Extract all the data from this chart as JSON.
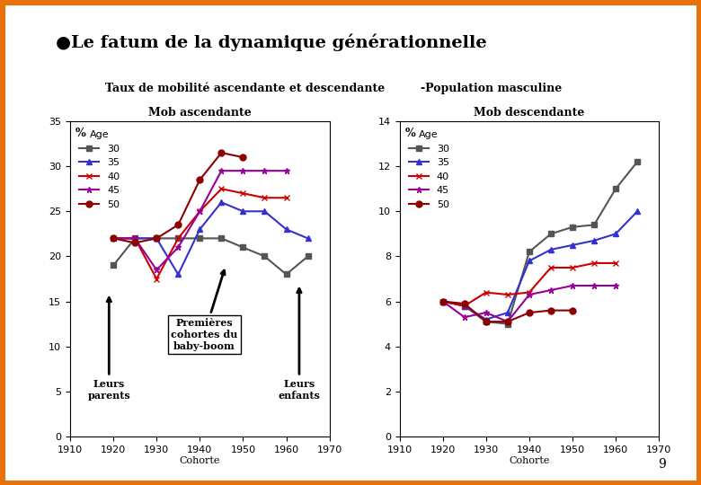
{
  "title": "●Le fatum de la dynamique générationnelle",
  "left_title": "Taux de mobilité ascendante et descendante",
  "left_subtitle": "Mob ascendante",
  "right_subtitle": "Mob descendante",
  "right_label": "-Population masculine",
  "xlabel": "Cohorte",
  "border_color": "#E8720C",
  "background_color": "#FFFFFF",
  "asc_cohorts_30": [
    1920,
    1925,
    1930,
    1935,
    1940,
    1945,
    1950,
    1955,
    1960,
    1965
  ],
  "asc_values_30": [
    19,
    22,
    22,
    22,
    22,
    22,
    21,
    20,
    18,
    20
  ],
  "asc_cohorts_35": [
    1920,
    1925,
    1930,
    1935,
    1940,
    1945,
    1950,
    1955,
    1960,
    1965
  ],
  "asc_values_35": [
    22,
    22,
    22,
    18,
    23,
    26,
    25,
    25,
    23,
    22
  ],
  "asc_cohorts_40": [
    1920,
    1925,
    1930,
    1935,
    1940,
    1945,
    1950,
    1955,
    1960
  ],
  "asc_values_40": [
    22,
    22,
    17.5,
    22,
    25,
    27.5,
    27,
    26.5,
    26.5
  ],
  "asc_cohorts_45": [
    1920,
    1925,
    1930,
    1935,
    1940,
    1945,
    1950,
    1955,
    1960
  ],
  "asc_values_45": [
    22,
    22,
    18.5,
    21,
    25,
    29.5,
    29.5,
    29.5,
    29.5
  ],
  "asc_cohorts_50": [
    1920,
    1925,
    1930,
    1935,
    1940,
    1945,
    1950
  ],
  "asc_values_50": [
    22,
    21.5,
    22,
    23.5,
    28.5,
    31.5,
    31.0
  ],
  "desc_cohorts_30": [
    1920,
    1925,
    1930,
    1935,
    1940,
    1945,
    1950,
    1955,
    1960,
    1965
  ],
  "desc_values_30": [
    6.0,
    5.8,
    5.1,
    5.0,
    8.2,
    9.0,
    9.3,
    9.4,
    11.0,
    12.2
  ],
  "desc_cohorts_35": [
    1920,
    1925,
    1930,
    1935,
    1940,
    1945,
    1950,
    1955,
    1960,
    1965
  ],
  "desc_values_35": [
    6.0,
    5.8,
    5.2,
    5.5,
    7.8,
    8.3,
    8.5,
    8.7,
    9.0,
    10.0
  ],
  "desc_cohorts_40": [
    1920,
    1925,
    1930,
    1935,
    1940,
    1945,
    1950,
    1955,
    1960
  ],
  "desc_values_40": [
    6.0,
    5.8,
    6.4,
    6.3,
    6.4,
    7.5,
    7.5,
    7.7,
    7.7
  ],
  "desc_cohorts_45": [
    1920,
    1925,
    1930,
    1935,
    1940,
    1945,
    1950,
    1955,
    1960
  ],
  "desc_values_45": [
    6.0,
    5.3,
    5.5,
    5.1,
    6.3,
    6.5,
    6.7,
    6.7,
    6.7
  ],
  "desc_cohorts_50": [
    1920,
    1925,
    1930,
    1935,
    1940,
    1945,
    1950
  ],
  "desc_values_50": [
    6.0,
    5.9,
    5.1,
    5.1,
    5.5,
    5.6,
    5.6
  ],
  "colors": {
    "30": "#555555",
    "35": "#3333CC",
    "40": "#CC0000",
    "45": "#990099",
    "50": "#8B0000"
  },
  "markers": {
    "30": "s",
    "35": "^",
    "40": "x",
    "45": "*",
    "50": "o"
  },
  "age_labels": [
    "30",
    "35",
    "40",
    "45",
    "50"
  ],
  "xlim": [
    1910,
    1970
  ],
  "asc_ylim": [
    0,
    35
  ],
  "asc_yticks": [
    0,
    5,
    10,
    15,
    20,
    25,
    30,
    35
  ],
  "desc_ylim": [
    0,
    14
  ],
  "desc_yticks": [
    0,
    2,
    4,
    6,
    8,
    10,
    12,
    14
  ],
  "xticks": [
    1910,
    1920,
    1930,
    1940,
    1950,
    1960,
    1970
  ]
}
